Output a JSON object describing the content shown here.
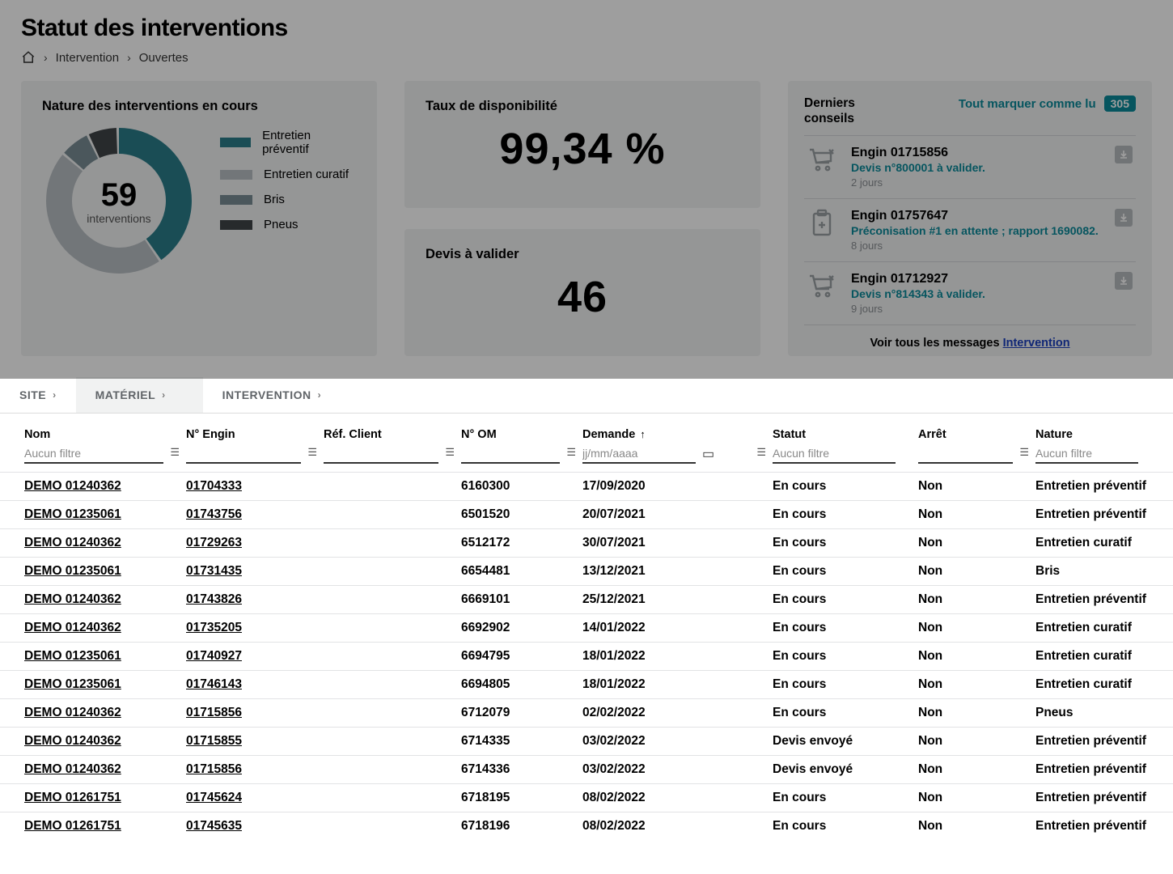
{
  "header": {
    "title": "Statut des interventions",
    "breadcrumb": {
      "l1": "Intervention",
      "l2": "Ouvertes"
    }
  },
  "donut_card": {
    "title": "Nature des interventions en cours",
    "center_value": "59",
    "center_label": "interventions",
    "segments": [
      {
        "label": "Entretien préventif",
        "color": "#2a7d8a",
        "value": 24
      },
      {
        "label": "Entretien curatif",
        "color": "#b9bfc3",
        "value": 27
      },
      {
        "label": "Bris",
        "color": "#7a8d95",
        "value": 4
      },
      {
        "label": "Pneus",
        "color": "#3f4447",
        "value": 4
      }
    ]
  },
  "availability_card": {
    "title": "Taux de disponibilité",
    "value": "99,34 %"
  },
  "quotes_card": {
    "title": "Devis à valider",
    "value": "46"
  },
  "advice_card": {
    "title": "Derniers conseils",
    "mark_all": "Tout marquer comme lu",
    "badge": "305",
    "footer_text": "Voir tous les messages ",
    "footer_link": "Intervention",
    "items": [
      {
        "icon": "cart",
        "title": "Engin 01715856",
        "sub": "Devis n°800001 à valider.",
        "age": "2 jours"
      },
      {
        "icon": "clip",
        "title": "Engin 01757647",
        "sub": "Préconisation #1 en attente ; rapport 1690082.",
        "age": "8 jours"
      },
      {
        "icon": "cart",
        "title": "Engin 01712927",
        "sub": "Devis n°814343 à valider.",
        "age": "9 jours"
      }
    ]
  },
  "tabs": {
    "site": "SITE",
    "materiel": "MATÉRIEL",
    "intervention": "INTERVENTION"
  },
  "columns": {
    "nom": "Nom",
    "engin": "N° Engin",
    "ref": "Réf. Client",
    "om": "N° OM",
    "demande": "Demande",
    "statut": "Statut",
    "arret": "Arrêt",
    "nature": "Nature"
  },
  "filters": {
    "placeholder_none": "Aucun filtre",
    "date_placeholder": "jj/mm/aaaa"
  },
  "rows": [
    {
      "nom": "DEMO 01240362",
      "engin": "01704333",
      "ref": "",
      "om": "6160300",
      "demande": "17/09/2020",
      "statut": "En cours",
      "arret": "Non",
      "nature": "Entretien préventif"
    },
    {
      "nom": "DEMO 01235061",
      "engin": "01743756",
      "ref": "",
      "om": "6501520",
      "demande": "20/07/2021",
      "statut": "En cours",
      "arret": "Non",
      "nature": "Entretien préventif"
    },
    {
      "nom": "DEMO 01240362",
      "engin": "01729263",
      "ref": "",
      "om": "6512172",
      "demande": "30/07/2021",
      "statut": "En cours",
      "arret": "Non",
      "nature": "Entretien curatif"
    },
    {
      "nom": "DEMO 01235061",
      "engin": "01731435",
      "ref": "",
      "om": "6654481",
      "demande": "13/12/2021",
      "statut": "En cours",
      "arret": "Non",
      "nature": "Bris"
    },
    {
      "nom": "DEMO 01240362",
      "engin": "01743826",
      "ref": "",
      "om": "6669101",
      "demande": "25/12/2021",
      "statut": "En cours",
      "arret": "Non",
      "nature": "Entretien préventif"
    },
    {
      "nom": "DEMO 01240362",
      "engin": "01735205",
      "ref": "",
      "om": "6692902",
      "demande": "14/01/2022",
      "statut": "En cours",
      "arret": "Non",
      "nature": "Entretien curatif"
    },
    {
      "nom": "DEMO 01235061",
      "engin": "01740927",
      "ref": "",
      "om": "6694795",
      "demande": "18/01/2022",
      "statut": "En cours",
      "arret": "Non",
      "nature": "Entretien curatif"
    },
    {
      "nom": "DEMO 01235061",
      "engin": "01746143",
      "ref": "",
      "om": "6694805",
      "demande": "18/01/2022",
      "statut": "En cours",
      "arret": "Non",
      "nature": "Entretien curatif"
    },
    {
      "nom": "DEMO 01240362",
      "engin": "01715856",
      "ref": "",
      "om": "6712079",
      "demande": "02/02/2022",
      "statut": "En cours",
      "arret": "Non",
      "nature": "Pneus"
    },
    {
      "nom": "DEMO 01240362",
      "engin": "01715855",
      "ref": "",
      "om": "6714335",
      "demande": "03/02/2022",
      "statut": "Devis envoyé",
      "arret": "Non",
      "nature": "Entretien préventif"
    },
    {
      "nom": "DEMO 01240362",
      "engin": "01715856",
      "ref": "",
      "om": "6714336",
      "demande": "03/02/2022",
      "statut": "Devis envoyé",
      "arret": "Non",
      "nature": "Entretien préventif"
    },
    {
      "nom": "DEMO 01261751",
      "engin": "01745624",
      "ref": "",
      "om": "6718195",
      "demande": "08/02/2022",
      "statut": "En cours",
      "arret": "Non",
      "nature": "Entretien préventif"
    },
    {
      "nom": "DEMO 01261751",
      "engin": "01745635",
      "ref": "",
      "om": "6718196",
      "demande": "08/02/2022",
      "statut": "En cours",
      "arret": "Non",
      "nature": "Entretien préventif"
    }
  ],
  "colors": {
    "card_bg": "#f1f2f3",
    "teal": "#0a8a9a",
    "overlay": "rgba(0,0,0,0.38)"
  }
}
